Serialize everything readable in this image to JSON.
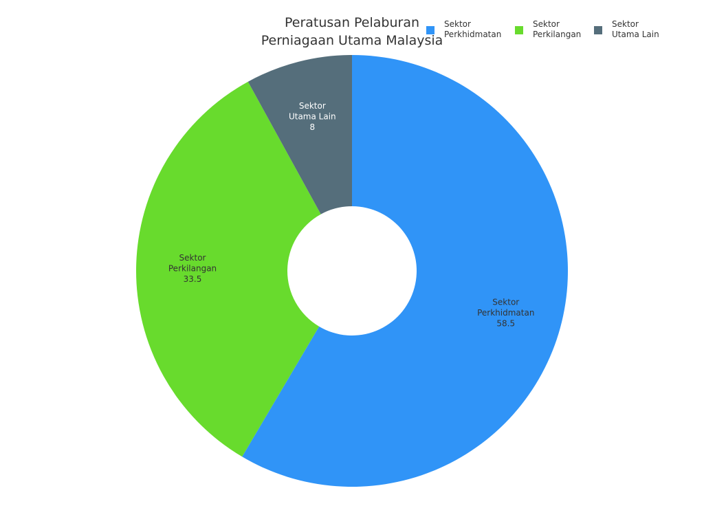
{
  "chart_data": {
    "type": "pie",
    "title": "Peratusan Pelaburan\nPerniagaan Utama Malaysia",
    "categories": [
      "Sektor\nPerkhidmatan",
      "Sektor\nPerkilangan",
      "Sektor\nUtama Lain"
    ],
    "values": [
      58.5,
      33.5,
      8
    ],
    "value_labels": [
      "58.5",
      "33.5",
      "8"
    ],
    "colors": [
      "#3094f7",
      "#68db2d",
      "#556e7b"
    ],
    "label_colors": [
      "#333333",
      "#333333",
      "#ffffff"
    ],
    "hole": true,
    "legend_position": "top-right"
  }
}
